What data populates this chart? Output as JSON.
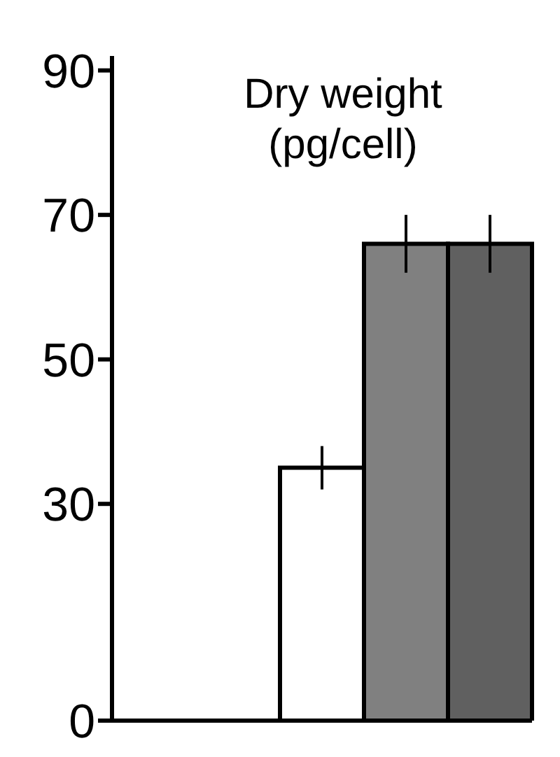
{
  "chart_data": {
    "type": "bar",
    "title": "Dry weight (pg/cell)",
    "categories": [
      null,
      null,
      null,
      null,
      null
    ],
    "values": [
      null,
      null,
      35,
      66,
      66
    ],
    "errors": [
      null,
      null,
      3,
      4,
      4
    ],
    "colors": [
      "#ffffff",
      "#ffffff",
      "#ffffff",
      "#808080",
      "#606060"
    ],
    "ylim": [
      0,
      92
    ],
    "yticks": [
      0,
      30,
      50,
      70,
      90
    ],
    "tick_labels": "y",
    "grid": false
  }
}
